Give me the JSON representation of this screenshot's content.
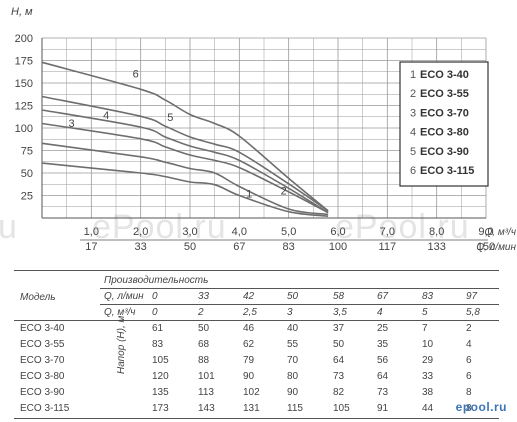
{
  "watermark": {
    "left": "u",
    "mid": "ePool.ru",
    "right": "ePool.ru"
  },
  "brand": "epool.ru",
  "chart_data": {
    "type": "line",
    "ylabel": "H, м",
    "yticks": [
      25,
      50,
      75,
      100,
      125,
      150,
      175,
      200
    ],
    "ylim": [
      0,
      200
    ],
    "xlim": [
      0,
      9
    ],
    "x_m3h_ticks": [
      1.0,
      2.0,
      3.0,
      4.0,
      5.0,
      6.0,
      7.0,
      8.0,
      9.0
    ],
    "x_m3h_labels": [
      "1,0",
      "2,0",
      "3,0",
      "4,0",
      "5,0",
      "6,0",
      "7,0",
      "8,0",
      "9,0"
    ],
    "x_lmin_labels": [
      "17",
      "33",
      "50",
      "67",
      "83",
      "100",
      "117",
      "133",
      "150"
    ],
    "xlabel_m3h": "Q, м³/ч",
    "xlabel_lmin": "Q, л/мин",
    "x": [
      0,
      2,
      2.5,
      3,
      3.5,
      4,
      5,
      5.8
    ],
    "series": [
      {
        "name": "ECO 3-40",
        "num": "1",
        "values": [
          61,
          50,
          46,
          40,
          37,
          25,
          7,
          2
        ]
      },
      {
        "name": "ECO 3-55",
        "num": "2",
        "values": [
          83,
          68,
          62,
          55,
          50,
          35,
          10,
          4
        ]
      },
      {
        "name": "ECO 3-70",
        "num": "3",
        "values": [
          105,
          88,
          79,
          70,
          64,
          56,
          29,
          6
        ]
      },
      {
        "name": "ECO 3-80",
        "num": "4",
        "values": [
          120,
          101,
          90,
          80,
          73,
          64,
          33,
          6
        ]
      },
      {
        "name": "ECO 3-90",
        "num": "5",
        "values": [
          135,
          113,
          102,
          90,
          82,
          73,
          38,
          8
        ]
      },
      {
        "name": "ECO 3-115",
        "num": "6",
        "values": [
          173,
          143,
          131,
          115,
          105,
          91,
          44,
          8
        ]
      }
    ],
    "curve_labels": [
      {
        "num": "1",
        "x": 4.2,
        "y": 23
      },
      {
        "num": "2",
        "x": 4.9,
        "y": 26
      },
      {
        "num": "3",
        "x": 0.6,
        "y": 101
      },
      {
        "num": "4",
        "x": 1.3,
        "y": 110
      },
      {
        "num": "5",
        "x": 2.6,
        "y": 108
      },
      {
        "num": "6",
        "x": 1.9,
        "y": 156
      }
    ],
    "legend_position": "right",
    "grid": true
  },
  "table": {
    "perf_label": "Производительность",
    "model_label": "Модель",
    "q_lmin_label": "Q, л/мин",
    "q_m3h_label": "Q, м³/ч",
    "head_label": "Напор (H), м",
    "q_lmin": [
      "0",
      "33",
      "42",
      "50",
      "58",
      "67",
      "83",
      "97"
    ],
    "q_m3h": [
      "0",
      "2",
      "2,5",
      "3",
      "3,5",
      "4",
      "5",
      "5,8"
    ],
    "rows": [
      {
        "model": "ECO 3-40",
        "values": [
          "61",
          "50",
          "46",
          "40",
          "37",
          "25",
          "7",
          "2"
        ]
      },
      {
        "model": "ECO 3-55",
        "values": [
          "83",
          "68",
          "62",
          "55",
          "50",
          "35",
          "10",
          "4"
        ]
      },
      {
        "model": "ECO 3-70",
        "values": [
          "105",
          "88",
          "79",
          "70",
          "64",
          "56",
          "29",
          "6"
        ]
      },
      {
        "model": "ECO 3-80",
        "values": [
          "120",
          "101",
          "90",
          "80",
          "73",
          "64",
          "33",
          "6"
        ]
      },
      {
        "model": "ECO 3-90",
        "values": [
          "135",
          "113",
          "102",
          "90",
          "82",
          "73",
          "38",
          "8"
        ]
      },
      {
        "model": "ECO 3-115",
        "values": [
          "173",
          "143",
          "131",
          "115",
          "105",
          "91",
          "44",
          "8"
        ]
      }
    ]
  },
  "colors": {
    "grid": "#9a9a9a",
    "curve": "#6e6e6e",
    "text": "#444444"
  }
}
